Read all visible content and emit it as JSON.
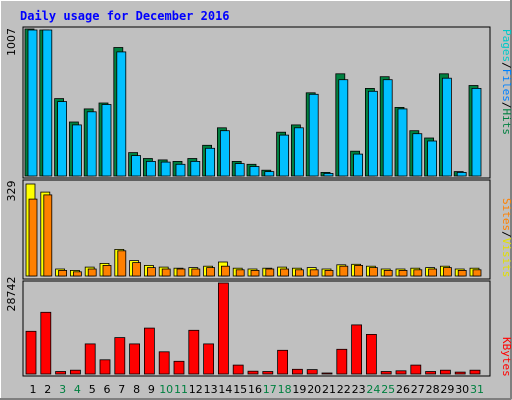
{
  "chart_data": {
    "type": "bar",
    "title": "Daily usage for December 2016",
    "categories": [
      "1",
      "2",
      "3",
      "4",
      "5",
      "6",
      "7",
      "8",
      "9",
      "10",
      "11",
      "12",
      "13",
      "14",
      "15",
      "16",
      "17",
      "18",
      "19",
      "20",
      "21",
      "22",
      "23",
      "24",
      "25",
      "26",
      "27",
      "28",
      "29",
      "30",
      "31"
    ],
    "weekend_days": [
      "3",
      "4",
      "10",
      "11",
      "17",
      "18",
      "24",
      "25",
      "31"
    ],
    "panels": [
      {
        "name": "hits_files_pages",
        "max_label": "1007",
        "ylim": [
          0,
          1007
        ],
        "legend": [
          "Pages",
          "/",
          "Files",
          "/",
          "Hits"
        ],
        "series": [
          {
            "name": "Hits",
            "color": "#008040",
            "values": [
              1007,
              1000,
              530,
              370,
              460,
              500,
              880,
              160,
              120,
              110,
              100,
              120,
              210,
              330,
              100,
              80,
              40,
              300,
              350,
              570,
              25,
              700,
              170,
              600,
              680,
              470,
              310,
              260,
              700,
              30,
              620
            ]
          },
          {
            "name": "Files",
            "color": "#00c0ff",
            "values": [
              1000,
              1000,
              510,
              350,
              440,
              490,
              850,
              140,
              100,
              95,
              80,
              100,
              190,
              310,
              85,
              65,
              30,
              280,
              330,
              560,
              18,
              660,
              150,
              580,
              660,
              460,
              290,
              240,
              670,
              25,
              600
            ]
          },
          {
            "name": "Pages",
            "color": "#00ffff",
            "values": [
              0,
              0,
              0,
              0,
              0,
              0,
              0,
              0,
              0,
              0,
              0,
              0,
              0,
              0,
              0,
              0,
              0,
              0,
              0,
              0,
              0,
              0,
              0,
              0,
              0,
              0,
              0,
              0,
              0,
              0,
              0
            ]
          }
        ]
      },
      {
        "name": "visits_sites",
        "max_label": "329",
        "ylim": [
          0,
          329
        ],
        "legend": [
          "Sites",
          "/",
          "Visits"
        ],
        "series": [
          {
            "name": "Visits",
            "color": "#ffff00",
            "values": [
              329,
              300,
              25,
              20,
              32,
              45,
              95,
              55,
              38,
              32,
              28,
              30,
              35,
              50,
              28,
              25,
              28,
              32,
              28,
              30,
              25,
              40,
              42,
              35,
              25,
              25,
              28,
              30,
              35,
              25,
              28
            ]
          },
          {
            "name": "Sites",
            "color": "#ff8000",
            "values": [
              275,
              290,
              20,
              15,
              25,
              38,
              90,
              48,
              30,
              25,
              25,
              25,
              30,
              35,
              22,
              20,
              25,
              25,
              22,
              22,
              20,
              35,
              38,
              30,
              20,
              20,
              22,
              25,
              30,
              20,
              22
            ]
          }
        ]
      },
      {
        "name": "kbytes",
        "max_label": "28742",
        "ylim": [
          0,
          28742
        ],
        "legend": [
          "KBytes"
        ],
        "series": [
          {
            "name": "KBytes",
            "color": "#ff0000",
            "values": [
              13500,
              19500,
              800,
              1200,
              9500,
              4500,
              11500,
              9500,
              14500,
              7000,
              4000,
              13800,
              9500,
              28742,
              2800,
              900,
              800,
              7500,
              1500,
              1400,
              300,
              7800,
              15500,
              12500,
              800,
              1000,
              2800,
              800,
              1200,
              600,
              1200
            ]
          }
        ]
      }
    ]
  }
}
